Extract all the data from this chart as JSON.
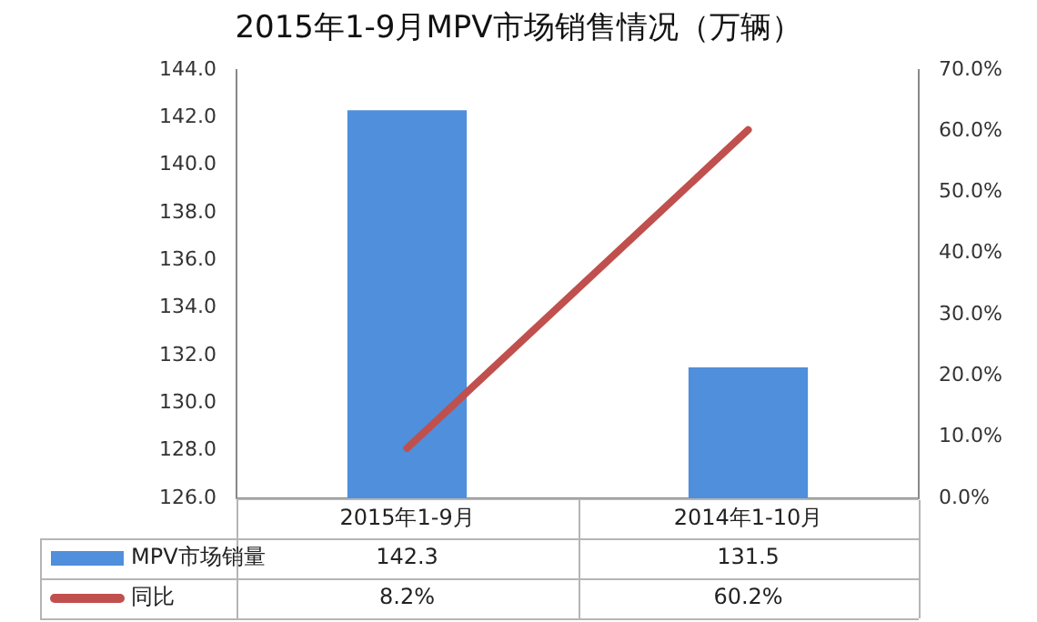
{
  "chart_data": {
    "type": "bar",
    "title": "2015年1-9月MPV市场销售情况（万辆）",
    "categories": [
      "2015年1-9月",
      "2014年1-10月"
    ],
    "series": [
      {
        "name": "MPV市场销量",
        "color": "#4f8fdc",
        "values": [
          142.3,
          131.5
        ],
        "value_labels": [
          "142.3",
          "131.5"
        ]
      },
      {
        "name": "同比",
        "type": "line",
        "axis": "y2",
        "color": "#c0504d",
        "values": [
          8.2,
          60.2
        ],
        "value_labels": [
          "8.2%",
          "60.2%"
        ]
      }
    ],
    "ylim": [
      126,
      144
    ],
    "yticks": [
      {
        "value": 126,
        "label": "126.0"
      },
      {
        "value": 128,
        "label": "128.0"
      },
      {
        "value": 130,
        "label": "130.0"
      },
      {
        "value": 132,
        "label": "132.0"
      },
      {
        "value": 134,
        "label": "134.0"
      },
      {
        "value": 136,
        "label": "136.0"
      },
      {
        "value": 138,
        "label": "138.0"
      },
      {
        "value": 140,
        "label": "140.0"
      },
      {
        "value": 142,
        "label": "142.0"
      },
      {
        "value": 144,
        "label": "144.0"
      }
    ],
    "y2lim": [
      0,
      70
    ],
    "y2ticks": [
      {
        "value": 0,
        "label": "0.0%"
      },
      {
        "value": 10,
        "label": "10.0%"
      },
      {
        "value": 20,
        "label": "20.0%"
      },
      {
        "value": 30,
        "label": "30.0%"
      },
      {
        "value": 40,
        "label": "40.0%"
      },
      {
        "value": 50,
        "label": "50.0%"
      },
      {
        "value": 60,
        "label": "60.0%"
      },
      {
        "value": 70,
        "label": "70.0%"
      }
    ],
    "grid": false,
    "legend": "bottom",
    "marker": "none",
    "line_style": "solid"
  }
}
